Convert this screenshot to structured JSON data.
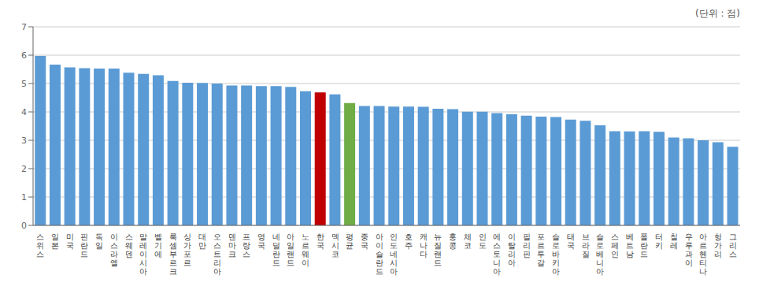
{
  "chart_data": {
    "type": "bar",
    "annotation": "(단위 : 점)",
    "categories": [
      "스위스",
      "일본",
      "미국",
      "핀란드",
      "독일",
      "이스라엘",
      "스웨덴",
      "말레이시아",
      "벨기에",
      "룩셈부르크",
      "싱가포르",
      "대만",
      "오스트리아",
      "덴마크",
      "프랑스",
      "영국",
      "네덜란드",
      "아일랜드",
      "노르웨이",
      "한국",
      "멕시코",
      "평균",
      "중국",
      "아이슬란드",
      "인도네시아",
      "호주",
      "캐나다",
      "뉴질랜드",
      "홍콩",
      "체코",
      "인도",
      "에스토니아",
      "이탈리아",
      "필리핀",
      "포르투갈",
      "슬로바키아",
      "태국",
      "브라질",
      "슬로베니아",
      "스페인",
      "베트남",
      "폴란드",
      "터키",
      "칠레",
      "우루과이",
      "아르헨티나",
      "헝가리",
      "그리스"
    ],
    "values": [
      5.97,
      5.67,
      5.57,
      5.54,
      5.53,
      5.53,
      5.38,
      5.34,
      5.29,
      5.09,
      5.03,
      5.02,
      5.0,
      4.93,
      4.93,
      4.91,
      4.91,
      4.88,
      4.73,
      4.69,
      4.62,
      4.31,
      4.21,
      4.21,
      4.19,
      4.19,
      4.18,
      4.11,
      4.1,
      4.01,
      4.01,
      3.96,
      3.92,
      3.87,
      3.83,
      3.82,
      3.73,
      3.69,
      3.53,
      3.32,
      3.31,
      3.32,
      3.3,
      3.1,
      3.07,
      3.0,
      2.93,
      2.77
    ],
    "colors": [
      "#5B9BD5",
      "#5B9BD5",
      "#5B9BD5",
      "#5B9BD5",
      "#5B9BD5",
      "#5B9BD5",
      "#5B9BD5",
      "#5B9BD5",
      "#5B9BD5",
      "#5B9BD5",
      "#5B9BD5",
      "#5B9BD5",
      "#5B9BD5",
      "#5B9BD5",
      "#5B9BD5",
      "#5B9BD5",
      "#5B9BD5",
      "#5B9BD5",
      "#5B9BD5",
      "#C00000",
      "#5B9BD5",
      "#70AD47",
      "#5B9BD5",
      "#5B9BD5",
      "#5B9BD5",
      "#5B9BD5",
      "#5B9BD5",
      "#5B9BD5",
      "#5B9BD5",
      "#5B9BD5",
      "#5B9BD5",
      "#5B9BD5",
      "#5B9BD5",
      "#5B9BD5",
      "#5B9BD5",
      "#5B9BD5",
      "#5B9BD5",
      "#5B9BD5",
      "#5B9BD5",
      "#5B9BD5",
      "#5B9BD5",
      "#5B9BD5",
      "#5B9BD5",
      "#5B9BD5",
      "#5B9BD5",
      "#5B9BD5",
      "#5B9BD5",
      "#5B9BD5"
    ],
    "ylim": [
      0,
      7
    ],
    "yticks": [
      0,
      1,
      2,
      3,
      4,
      5,
      6,
      7
    ],
    "grid": true
  }
}
